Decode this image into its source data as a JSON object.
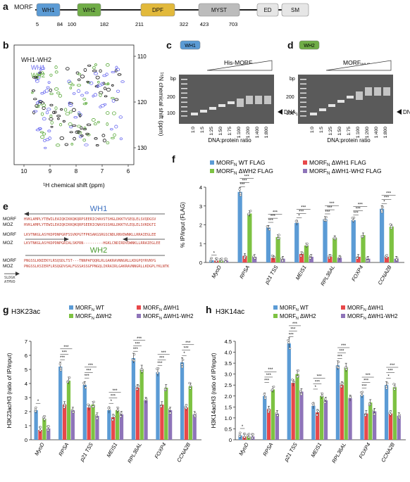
{
  "panels": {
    "a": "a",
    "b": "b",
    "c": "c",
    "d": "d",
    "e": "e",
    "f": "f",
    "g": "g",
    "h": "h"
  },
  "panel_a": {
    "protein": "MORF",
    "domains": [
      {
        "name": "WH1",
        "color": "#5b9bd5"
      },
      {
        "name": "WH2",
        "color": "#70ad47"
      },
      {
        "name": "DPF",
        "color": "#e2b93b"
      },
      {
        "name": "MYST",
        "color": "#bcbcbc"
      },
      {
        "name": "ED",
        "color": "#e6e6e6"
      },
      {
        "name": "SM",
        "color": "#e6e6e6"
      }
    ],
    "positions": [
      "5",
      "84",
      "100",
      "182",
      "211",
      "322",
      "423",
      "703"
    ]
  },
  "panel_b": {
    "legend": [
      {
        "label": "WH1-WH2",
        "color": "#111111"
      },
      {
        "label": "WH1",
        "color": "#6a6af0"
      },
      {
        "label": "WH2",
        "color": "#5aaa3a"
      }
    ],
    "xlabel": "¹H chemical shift (ppm)",
    "ylabel": "¹⁵N chemical shift (ppm)",
    "xticks": [
      "10",
      "9",
      "8",
      "7",
      "6"
    ],
    "yticks": [
      "110",
      "120",
      "130"
    ]
  },
  "panel_c": {
    "tag": "WH1",
    "tag_color": "#5b9bd5",
    "title": "His-MORF",
    "title_sub": "WH1",
    "bp": "bp",
    "markers": [
      "200",
      "100"
    ],
    "arrow": "DNA",
    "arrow_sub": "147",
    "lanes": [
      "1:0",
      "1:5",
      "1:25",
      "1:50",
      "1:75",
      "1:100",
      "1:200",
      "1:400",
      "1:800"
    ],
    "xlabel": "DNA:protein ratio"
  },
  "panel_d": {
    "tag": "WH2",
    "tag_color": "#70ad47",
    "title": "MORF",
    "title_sub": "WH2",
    "bp": "bp",
    "markers": [
      "200",
      "100"
    ],
    "arrow": "DNA",
    "arrow_sub": "147",
    "lanes": [
      "1:0",
      "1:5",
      "1:25",
      "1:50",
      "1:75",
      "1:100",
      "1:200",
      "1:400",
      "1:800"
    ],
    "xlabel": "DNA:protein ratio"
  },
  "panel_e": {
    "wh1": "WH1",
    "wh2": "WH2",
    "rows": [
      {
        "name": "MORF",
        "seq": "HVKLAMPLYTEWILEAIQKIKKQKQRPSEERICHAVSTSHGLDKKTVSEQLELSVQDGSV"
      },
      {
        "name": "MOZ",
        "seq": "HVKLAMPLYTEWILEAIQKIKKQKQRPSEERICNAVSSSHGLDKKTVLEQLELSVKDGTI"
      },
      {
        "name": "MORF",
        "seq": "LKVTNKGLASYKDPDNPGRFSSVKPGTFPKSAKGSRGSCNDLRNVDWNKLLRRAIEGLEE"
      },
      {
        "name": "MOZ",
        "seq": "LKVTNKGLASYKDPDNPGRIALSKPRN---------HGKLCNDIRDVDWNKLLRRAIEGLEE"
      },
      {
        "name": "MORF",
        "seq": "PNGSSLKNIEKYLRSQSDLTST---TNNPAFQQRLRLGAKRAVNNGRLLKDGPQYRVNYG"
      },
      {
        "name": "MOZ",
        "seq": "PNGSSLKSIERFLRSQGDVSALFGSSASSGFPNGQLIKRAIRLGAKRAVNNGRLLKDGPLYKLNTK"
      }
    ],
    "tail": [
      "SLDGK",
      "ATMVD"
    ]
  },
  "panel_f": {
    "legend": [
      {
        "label": "MORF",
        "sub": "N",
        "suffix": " WT FLAG",
        "color": "#5b9bd5"
      },
      {
        "label": "MORF",
        "sub": "N",
        "suffix": " ΔWH1 FLAG",
        "color": "#e8484a"
      },
      {
        "label": "MORF",
        "sub": "N",
        "suffix": " ΔWH2 FLAG",
        "color": "#7dc242"
      },
      {
        "label": "MORF",
        "sub": "N",
        "suffix": " ΔWH1-WH2 FLAG",
        "color": "#8e74b9"
      }
    ],
    "ylabel": "% IP/input (FLAG)",
    "yticks": [
      "0",
      "1",
      "2",
      "3",
      "4"
    ],
    "sig": [
      "***",
      "***",
      "*",
      "***",
      "***",
      "***",
      "***",
      "***",
      "***",
      "***",
      "***",
      "*",
      "***",
      "***",
      "***",
      "***",
      "***",
      "***"
    ]
  },
  "panel_g": {
    "title": "H3K23ac",
    "legend": [
      {
        "label": "MORF",
        "sub": "N",
        "suffix": " WT",
        "color": "#5b9bd5"
      },
      {
        "label": "MORF",
        "sub": "N",
        "suffix": " ΔWH1",
        "color": "#e8484a"
      },
      {
        "label": "MORF",
        "sub": "N",
        "suffix": " ΔWH2",
        "color": "#7dc242"
      },
      {
        "label": "MORF",
        "sub": "N",
        "suffix": " ΔWH1-WH2",
        "color": "#8e74b9"
      }
    ],
    "ylabel": "H3K23ac/H3 (ratio of IP/input)",
    "yticks": [
      "0",
      "1",
      "2",
      "3",
      "4",
      "5",
      "6",
      "7"
    ]
  },
  "panel_h": {
    "title": "H3K14ac",
    "legend": [
      {
        "label": "MORF",
        "sub": "N",
        "suffix": " WT",
        "color": "#5b9bd5"
      },
      {
        "label": "MORF",
        "sub": "N",
        "suffix": " ΔWH1",
        "color": "#e8484a"
      },
      {
        "label": "MORF",
        "sub": "N",
        "suffix": " ΔWH2",
        "color": "#7dc242"
      },
      {
        "label": "MORF",
        "sub": "N",
        "suffix": " ΔWH1-WH2",
        "color": "#8e74b9"
      }
    ],
    "ylabel": "H3K14ac/H3 (ratio of IP/input)",
    "yticks": [
      "0",
      "0.5",
      "1.0",
      "1.5",
      "2.0",
      "2.5",
      "3.0",
      "3.5",
      "4.0",
      "4.5"
    ]
  },
  "chart_data": [
    {
      "type": "bar",
      "id": "f",
      "categories": [
        "MyoD",
        "RPSA",
        "p21 TSS",
        "MEIS1",
        "RPL36AL",
        "FOXP4",
        "CCNA2B"
      ],
      "ylim": [
        0,
        4
      ],
      "series": [
        {
          "name": "MORFN WT FLAG",
          "values": [
            0.12,
            3.75,
            1.85,
            2.1,
            2.3,
            2.25,
            2.85
          ]
        },
        {
          "name": "MORFN ΔWH1 FLAG",
          "values": [
            0.1,
            0.35,
            0.25,
            0.45,
            0.3,
            0.3,
            0.3
          ]
        },
        {
          "name": "MORFN ΔWH2 FLAG",
          "values": [
            0.1,
            2.6,
            1.35,
            0.9,
            1.3,
            1.45,
            1.9
          ]
        },
        {
          "name": "MORFN ΔWH1-WH2 FLAG",
          "values": [
            0.1,
            0.3,
            0.2,
            0.3,
            0.25,
            0.2,
            0.2
          ]
        }
      ]
    },
    {
      "type": "bar",
      "id": "g",
      "categories": [
        "MyoD",
        "RPSA",
        "p21 TSS",
        "MEIS1",
        "RPL36AL",
        "FOXP4",
        "CCNA2B"
      ],
      "ylim": [
        0,
        7
      ],
      "series": [
        {
          "name": "MORFN WT",
          "values": [
            2.1,
            5.2,
            3.9,
            2.1,
            5.8,
            4.8,
            5.5
          ]
        },
        {
          "name": "MORFN ΔWH1",
          "values": [
            0.7,
            2.5,
            2.3,
            1.6,
            3.7,
            2.5,
            2.3
          ]
        },
        {
          "name": "MORFN ΔWH2",
          "values": [
            1.5,
            4.2,
            2.5,
            2.1,
            5.0,
            3.7,
            3.8
          ]
        },
        {
          "name": "MORFN ΔWH1-WH2",
          "values": [
            0.8,
            2.1,
            1.7,
            1.8,
            2.8,
            2.1,
            1.8
          ]
        }
      ]
    },
    {
      "type": "bar",
      "id": "h",
      "categories": [
        "MyoD",
        "RPSA",
        "p21 TSS",
        "MEIS1",
        "RPL36AL",
        "FOXP4",
        "CCNA2B"
      ],
      "ylim": [
        0,
        4.5
      ],
      "series": [
        {
          "name": "MORFN WT",
          "values": [
            0.2,
            2.0,
            4.4,
            1.55,
            3.4,
            2.05,
            2.5
          ]
        },
        {
          "name": "MORFN ΔWH1",
          "values": [
            0.15,
            1.4,
            2.6,
            1.25,
            2.5,
            1.2,
            1.2
          ]
        },
        {
          "name": "MORFN ΔWH2",
          "values": [
            0.15,
            2.3,
            3.0,
            2.0,
            3.3,
            1.7,
            2.4
          ]
        },
        {
          "name": "MORFN ΔWH1-WH2",
          "values": [
            0.15,
            1.2,
            2.2,
            1.8,
            1.9,
            1.3,
            1.1
          ]
        }
      ]
    }
  ]
}
